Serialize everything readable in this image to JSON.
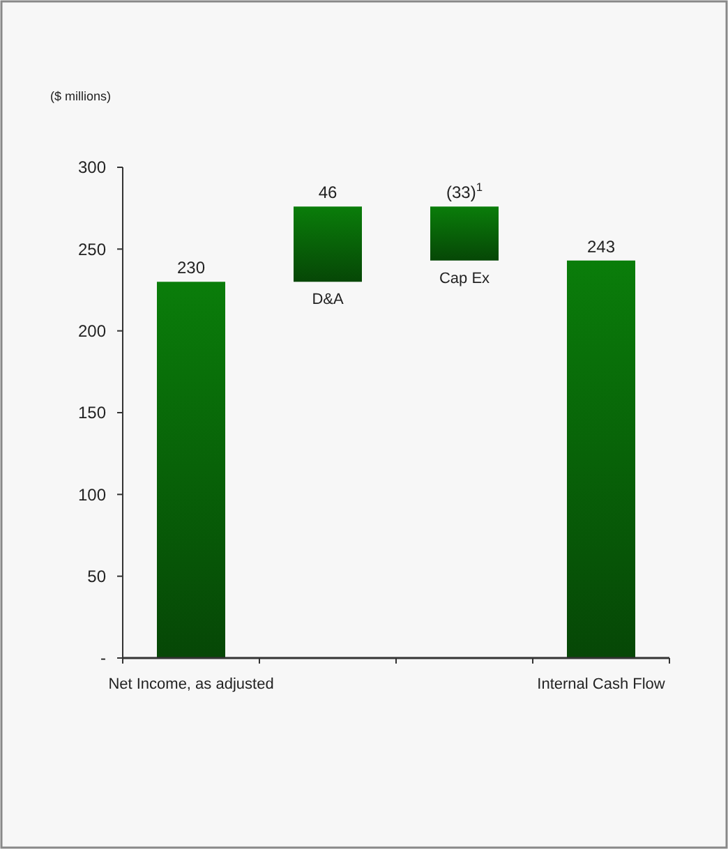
{
  "chart_data": {
    "type": "bar",
    "ylabel": "($ millions)",
    "categories": [
      "Net Income, as adjusted",
      "D&A",
      "Cap Ex",
      "Internal Cash Flow"
    ],
    "values": [
      230,
      46,
      -33,
      243
    ],
    "base": [
      0,
      230,
      276,
      0
    ],
    "value_labels": [
      "230",
      "46",
      "(33)$^{1}$",
      "243"
    ],
    "color": "#0a7d0a",
    "ylim": [
      0,
      300
    ],
    "yticks": [
      {
        "value": 0,
        "label": "-"
      },
      50,
      100,
      150,
      200,
      250,
      300
    ],
    "grid": false
  }
}
